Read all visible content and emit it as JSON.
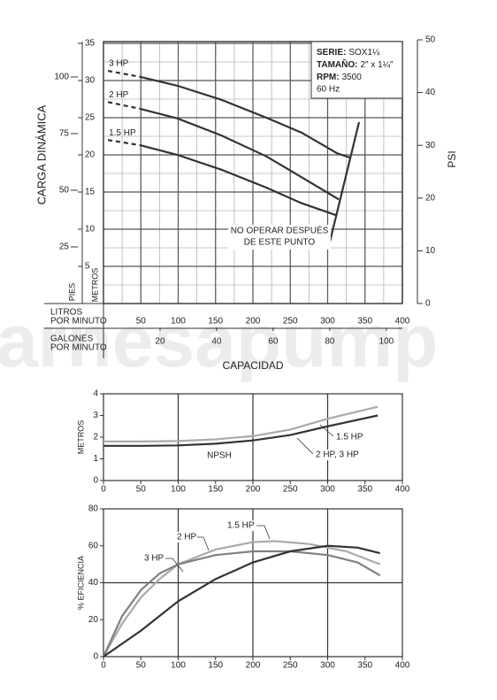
{
  "watermark": "arnesapump",
  "chart_data": [
    {
      "type": "line",
      "y_label": "CARGA DINÁMICA",
      "y_unit_label": "METROS",
      "y3_label": "PIES",
      "y2_label": "PSI",
      "x_label": "CAPACIDAD",
      "x_name": [
        "LITROS",
        "POR MINUTO"
      ],
      "x2_name": [
        "GALONES",
        "POR MINUTO"
      ],
      "xlim": [
        0,
        400
      ],
      "xticks": [
        50,
        100,
        150,
        200,
        250,
        300,
        350,
        400
      ],
      "x2lim": [
        0,
        105.67
      ],
      "x2ticks": [
        20,
        40,
        60,
        80,
        100
      ],
      "ylim": [
        0,
        35
      ],
      "yticks": [
        5,
        10,
        15,
        20,
        25,
        30,
        35
      ],
      "y3lim": [
        0,
        114.83
      ],
      "y3ticks": [
        25,
        50,
        75,
        100
      ],
      "y2lim": [
        0,
        50
      ],
      "y2ticks": [
        0,
        10,
        20,
        30,
        40,
        50
      ],
      "minor_grid": [
        25,
        2.5
      ],
      "series": [
        {
          "name": "3 HP",
          "color": "#333333",
          "start_dashed": true,
          "x": [
            6,
            49,
            99,
            158,
            218,
            265,
            313,
            331
          ],
          "values": [
            31.3,
            30.5,
            29.3,
            27.4,
            25.0,
            23.0,
            20.2,
            19.6
          ]
        },
        {
          "name": "2 HP",
          "color": "#333333",
          "start_dashed": true,
          "x": [
            6,
            49,
            99,
            158,
            218,
            265,
            315
          ],
          "values": [
            27.1,
            26.2,
            24.9,
            22.6,
            19.8,
            17.0,
            14.0
          ]
        },
        {
          "name": "1.5 HP",
          "color": "#333333",
          "start_dashed": true,
          "x": [
            6,
            49,
            99,
            158,
            218,
            265,
            311
          ],
          "values": [
            22.0,
            21.3,
            20.0,
            18.0,
            15.6,
            13.5,
            11.9
          ]
        }
      ],
      "limit_line": {
        "x": [
          301,
          342
        ],
        "values": [
          7.5,
          24.4
        ],
        "label": [
          "NO OPERAR DESPUÉS",
          "DE ESTE PUNTO"
        ]
      },
      "info": [
        {
          "label": "SERIE:",
          "value": "SOX1¼"
        },
        {
          "label": "TAMAÑO:",
          "value": "2\" x 1¼\""
        },
        {
          "label": "RPM:",
          "value": "3500"
        }
      ],
      "info_note": "60 Hz"
    },
    {
      "type": "line",
      "y_label": "METROS",
      "annotation": "NPSH",
      "grid_step": 100,
      "xlim": [
        0,
        400
      ],
      "xticks": [
        0,
        50,
        100,
        150,
        200,
        250,
        300,
        350,
        400
      ],
      "ylim": [
        0,
        4
      ],
      "yticks": [
        0,
        1,
        2,
        3,
        4
      ],
      "series": [
        {
          "name": "1.5 HP",
          "color": "#aaaaaa",
          "x": [
            0,
            50,
            100,
            150,
            200,
            250,
            300,
            367
          ],
          "values": [
            1.8,
            1.8,
            1.82,
            1.9,
            2.05,
            2.35,
            2.85,
            3.4
          ]
        },
        {
          "name": "2 HP, 3 HP",
          "color": "#333333",
          "x": [
            0,
            50,
            100,
            150,
            200,
            250,
            300,
            367
          ],
          "values": [
            1.6,
            1.6,
            1.62,
            1.7,
            1.85,
            2.1,
            2.5,
            3.0
          ]
        }
      ]
    },
    {
      "type": "line",
      "y_label": "% EFICIENCIA",
      "grid_step": 100,
      "ygrid_step": 40,
      "xlim": [
        0,
        400
      ],
      "xticks": [
        0,
        50,
        100,
        150,
        200,
        250,
        300,
        350,
        400
      ],
      "ylim": [
        0,
        80
      ],
      "yticks": [
        0,
        20,
        40,
        60,
        80
      ],
      "series": [
        {
          "name": "1.5 HP",
          "color": "#aaaaaa",
          "x": [
            0,
            25,
            50,
            75,
            100,
            150,
            200,
            230,
            275,
            325,
            370
          ],
          "values": [
            0,
            18,
            32,
            42,
            50,
            58,
            62,
            62.5,
            61,
            57,
            50
          ]
        },
        {
          "name": "2 HP",
          "color": "#808080",
          "x": [
            0,
            25,
            50,
            75,
            100,
            150,
            200,
            250,
            300,
            340,
            370
          ],
          "values": [
            0,
            22,
            36,
            45,
            50,
            55,
            57,
            57,
            55,
            51,
            44
          ]
        },
        {
          "name": "3 HP",
          "color": "#333333",
          "x": [
            0,
            50,
            100,
            150,
            200,
            250,
            300,
            340,
            370
          ],
          "values": [
            0,
            14,
            30,
            42,
            51,
            57,
            60,
            59,
            56
          ]
        }
      ]
    }
  ]
}
